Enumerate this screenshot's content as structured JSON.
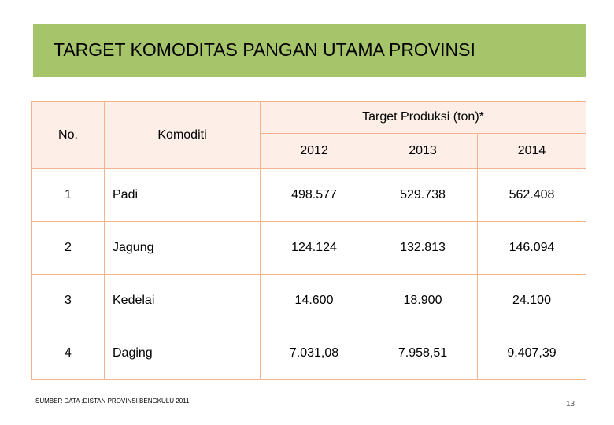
{
  "header": {
    "title": "TARGET KOMODITAS PANGAN UTAMA PROVINSI"
  },
  "table": {
    "columns": {
      "no": "No.",
      "commodity": "Komoditi",
      "target": "Target Produksi (ton)*",
      "years": [
        "2012",
        "2013",
        "2014"
      ]
    },
    "rows": [
      [
        "1",
        "Padi",
        "498.577",
        "529.738",
        "562.408"
      ],
      [
        "2",
        "Jagung",
        "124.124",
        "132.813",
        "146.094"
      ],
      [
        "3",
        "Kedelai",
        "14.600",
        "18.900",
        "24.100"
      ],
      [
        "4",
        "Daging",
        "7.031,08",
        "7.958,51",
        "9.407,39"
      ]
    ]
  },
  "footer": {
    "source": "SUMBER DATA :DISTAN PROVINSI BENGKULU 2011",
    "page": "13"
  }
}
